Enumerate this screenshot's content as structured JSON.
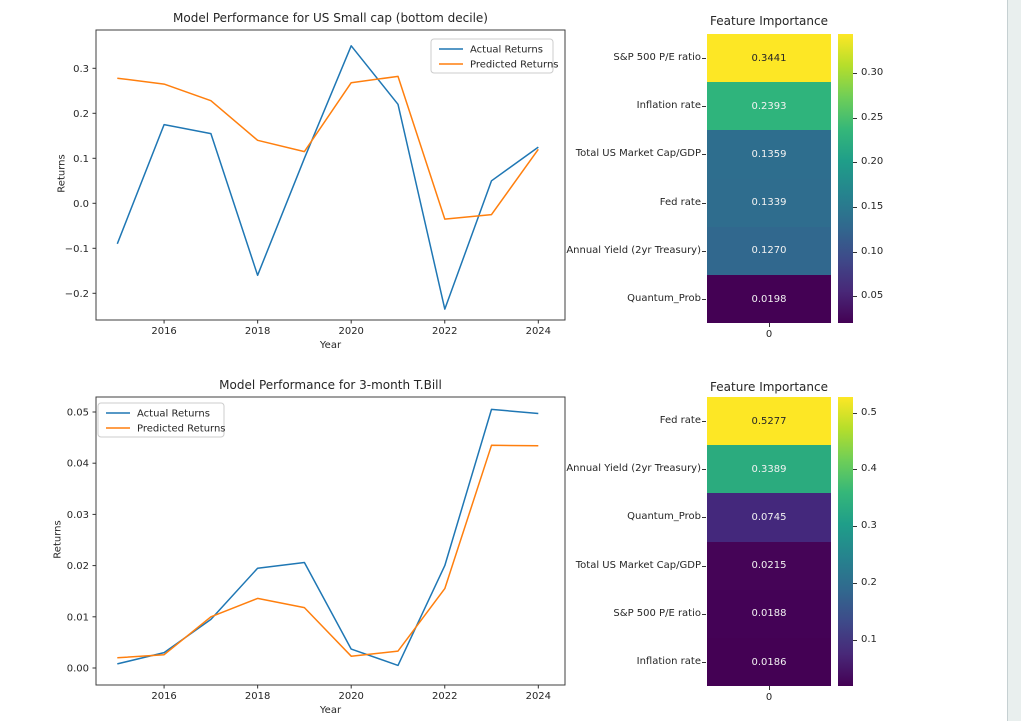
{
  "page": {
    "background": "#ffffff",
    "scrollbar": {
      "track_color": "#e9efee",
      "border_color": "#c6d0d2"
    }
  },
  "chart_data": [
    {
      "type": "line",
      "title": "Model Performance for US Small cap (bottom decile)",
      "xlabel": "Year",
      "ylabel": "Returns",
      "x": [
        2015,
        2016,
        2017,
        2018,
        2019,
        2020,
        2021,
        2022,
        2023,
        2024
      ],
      "xtick_values": [
        2016,
        2018,
        2020,
        2022,
        2024
      ],
      "xtick_labels": [
        "2016",
        "2018",
        "2020",
        "2022",
        "2024"
      ],
      "ytick_values": [
        0.3,
        0.2,
        0.1,
        0.0,
        -0.1,
        -0.2
      ],
      "ytick_labels": [
        "0.3",
        "0.2",
        "0.1",
        "0.0",
        "−0.1",
        "−0.2"
      ],
      "ylim": [
        -0.259,
        0.385
      ],
      "grid": false,
      "legend_position": "top-right",
      "series": [
        {
          "name": "Actual Returns",
          "color": "#1f77b4",
          "values": [
            -0.09,
            0.175,
            0.155,
            -0.16,
            0.1,
            0.35,
            0.22,
            -0.235,
            0.05,
            0.125
          ]
        },
        {
          "name": "Predicted Returns",
          "color": "#ff7f0e",
          "values": [
            0.278,
            0.265,
            0.228,
            0.14,
            0.115,
            0.268,
            0.282,
            -0.035,
            -0.025,
            0.12
          ]
        }
      ]
    },
    {
      "type": "heatmap",
      "title": "Feature Importance",
      "xtick_label": "0",
      "rows": [
        {
          "label": "S&P 500 P/E ratio",
          "value": "0.3441",
          "color": "#fde725",
          "text_color": "#262626"
        },
        {
          "label": "Inflation rate",
          "value": "0.2393",
          "color": "#2fb47c",
          "text_color": "#f2f2f2"
        },
        {
          "label": "Total US Market Cap/GDP",
          "value": "0.1359",
          "color": "#2e6e8e",
          "text_color": "#f2f2f2"
        },
        {
          "label": "Fed rate",
          "value": "0.1339",
          "color": "#2f6d8e",
          "text_color": "#f2f2f2"
        },
        {
          "label": "Annual Yield (2yr Treasury)",
          "value": "0.1270",
          "color": "#31688e",
          "text_color": "#f2f2f2"
        },
        {
          "label": "Quantum_Prob",
          "value": "0.0198",
          "color": "#440154",
          "text_color": "#f2f2f2"
        }
      ],
      "colorbar": {
        "colormap": "viridis",
        "vmin": 0.0198,
        "vmax": 0.3441,
        "tick_labels": [
          "0.30",
          "0.25",
          "0.20",
          "0.15",
          "0.10",
          "0.05"
        ]
      }
    },
    {
      "type": "line",
      "title": "Model Performance for 3-month T.Bill",
      "xlabel": "Year",
      "ylabel": "Returns",
      "x": [
        2015,
        2016,
        2017,
        2018,
        2019,
        2020,
        2021,
        2022,
        2023,
        2024
      ],
      "xtick_values": [
        2016,
        2018,
        2020,
        2022,
        2024
      ],
      "xtick_labels": [
        "2016",
        "2018",
        "2020",
        "2022",
        "2024"
      ],
      "ytick_values": [
        0.05,
        0.04,
        0.03,
        0.02,
        0.01,
        0.0
      ],
      "ytick_labels": [
        "0.05",
        "0.04",
        "0.03",
        "0.02",
        "0.01",
        "0.00"
      ],
      "ylim": [
        -0.0033,
        0.0529
      ],
      "grid": false,
      "legend_position": "top-left",
      "series": [
        {
          "name": "Actual Returns",
          "color": "#1f77b4",
          "values": [
            0.0008,
            0.003,
            0.0095,
            0.0195,
            0.0206,
            0.0037,
            0.0005,
            0.02,
            0.0505,
            0.0497
          ]
        },
        {
          "name": "Predicted Returns",
          "color": "#ff7f0e",
          "values": [
            0.002,
            0.0026,
            0.01,
            0.0136,
            0.0118,
            0.0023,
            0.0033,
            0.0155,
            0.0435,
            0.0434
          ]
        }
      ]
    },
    {
      "type": "heatmap",
      "title": "Feature Importance",
      "xtick_label": "0",
      "rows": [
        {
          "label": "Fed rate",
          "value": "0.5277",
          "color": "#fde725",
          "text_color": "#262626"
        },
        {
          "label": "Annual Yield (2yr Treasury)",
          "value": "0.3389",
          "color": "#2bab7e",
          "text_color": "#f2f2f2"
        },
        {
          "label": "Quantum_Prob",
          "value": "0.0745",
          "color": "#44287c",
          "text_color": "#f2f2f2"
        },
        {
          "label": "Total US Market Cap/GDP",
          "value": "0.0215",
          "color": "#450457",
          "text_color": "#f2f2f2"
        },
        {
          "label": "S&P 500 P/E ratio",
          "value": "0.0188",
          "color": "#440256",
          "text_color": "#f2f2f2"
        },
        {
          "label": "Inflation rate",
          "value": "0.0186",
          "color": "#440154",
          "text_color": "#f2f2f2"
        }
      ],
      "colorbar": {
        "colormap": "viridis",
        "vmin": 0.0186,
        "vmax": 0.5277,
        "tick_labels": [
          "0.5",
          "0.4",
          "0.3",
          "0.2",
          "0.1"
        ]
      }
    }
  ]
}
